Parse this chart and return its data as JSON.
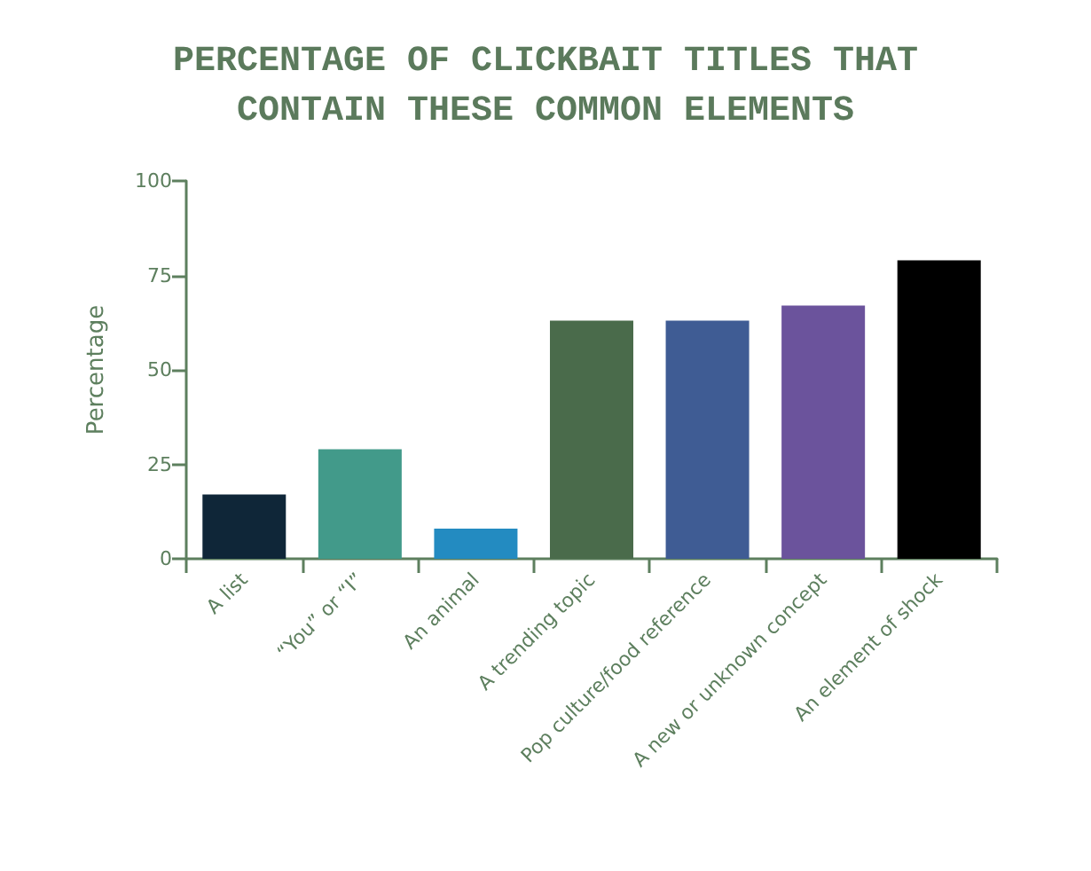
{
  "chart_data": {
    "type": "bar",
    "title": "PERCENTAGE OF CLICKBAIT TITLES THAT\nCONTAIN THESE COMMON ELEMENTS",
    "ylabel": "Percentage",
    "categories": [
      "A list",
      "“You” or “I”",
      "An animal",
      "A trending topic",
      "Pop culture/food reference",
      "A new or unknown concept",
      "An element of shock"
    ],
    "values": [
      17,
      29,
      8,
      63,
      63,
      67,
      79
    ],
    "colors": [
      "#0f2638",
      "#429a8a",
      "#238bc1",
      "#4a6b4b",
      "#3f5c94",
      "#6b539c",
      "#000000"
    ],
    "ylim": [
      0,
      100
    ],
    "yticks": [
      0,
      25,
      50,
      75,
      100
    ],
    "grid": false
  }
}
